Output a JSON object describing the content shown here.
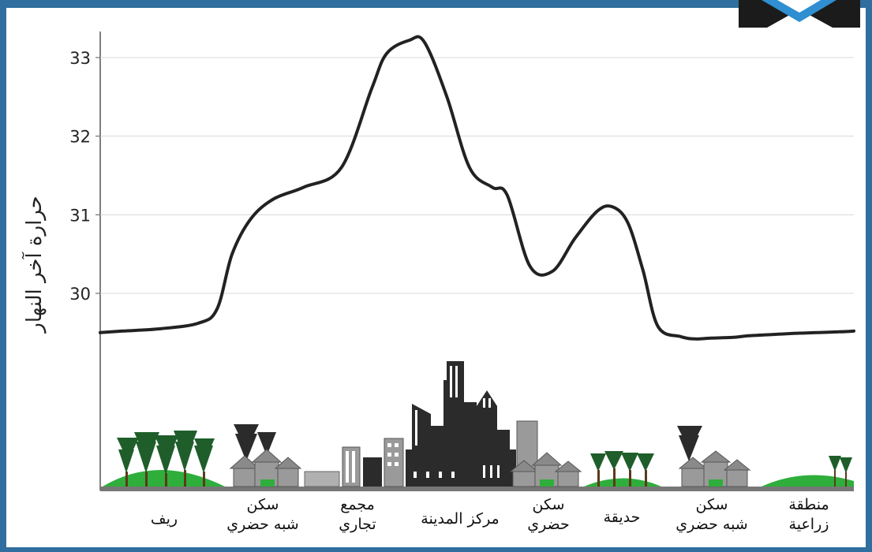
{
  "chart_data": {
    "type": "line",
    "title": "",
    "ylabel": "حرارة آخر النهار",
    "xlabel": "",
    "ylim": [
      28.5,
      33.3
    ],
    "yticks": [
      30,
      31,
      32,
      33
    ],
    "grid": true,
    "series": [
      {
        "name": "",
        "x": [
          0,
          0.03,
          0.08,
          0.13,
          0.155,
          0.175,
          0.2,
          0.23,
          0.27,
          0.32,
          0.36,
          0.38,
          0.41,
          0.43,
          0.46,
          0.49,
          0.52,
          0.54,
          0.57,
          0.6,
          0.63,
          0.66,
          0.68,
          0.7,
          0.72,
          0.74,
          0.77,
          0.79,
          0.81,
          0.84,
          0.86,
          0.88,
          0.9,
          0.92,
          0.95,
          0.98,
          1
        ],
        "values": [
          29.5,
          29.52,
          29.55,
          29.62,
          29.8,
          30.5,
          30.95,
          31.2,
          31.35,
          31.6,
          32.6,
          33.05,
          33.22,
          33.2,
          32.5,
          31.6,
          31.35,
          31.25,
          30.35,
          30.28,
          30.7,
          31.05,
          31.1,
          30.9,
          30.3,
          29.58,
          29.45,
          29.42,
          29.43,
          29.44,
          29.46,
          29.47,
          29.48,
          29.49,
          29.5,
          29.51,
          29.52
        ]
      }
    ],
    "zones": [
      {
        "label": "منطقة زراعية"
      },
      {
        "label": "سكن شبه حضري"
      },
      {
        "label": "حديقة"
      },
      {
        "label": "سكن حضري"
      },
      {
        "label": "مركز المدينة"
      },
      {
        "label": "مجمع تجاري"
      },
      {
        "label": "سكن شبه حضري"
      },
      {
        "label": "ريف"
      }
    ]
  },
  "diagram": {
    "zone_lines": {
      "farm_l1": "منطقة",
      "farm_l2": "زراعية",
      "suburb_r_l1": "سكن",
      "suburb_r_l2": "شبه حضري",
      "park": "حديقة",
      "urban_l1": "سكن",
      "urban_l2": "حضري",
      "downtown": "مركز المدينة",
      "mall_l1": "مجمع",
      "mall_l2": "تجاري",
      "suburb_l_l1": "سكن",
      "suburb_l_l2": "شبه حضري",
      "rural": "ريف"
    },
    "colors": {
      "frame": "#2f6e9e",
      "curve": "#222222",
      "grid": "#d8d8d8",
      "grass": "#2fae3c",
      "tree": "#1f5e2a",
      "building_dark": "#2b2b2b",
      "building_gray": "#9a9a9a",
      "ground": "#777777"
    }
  }
}
